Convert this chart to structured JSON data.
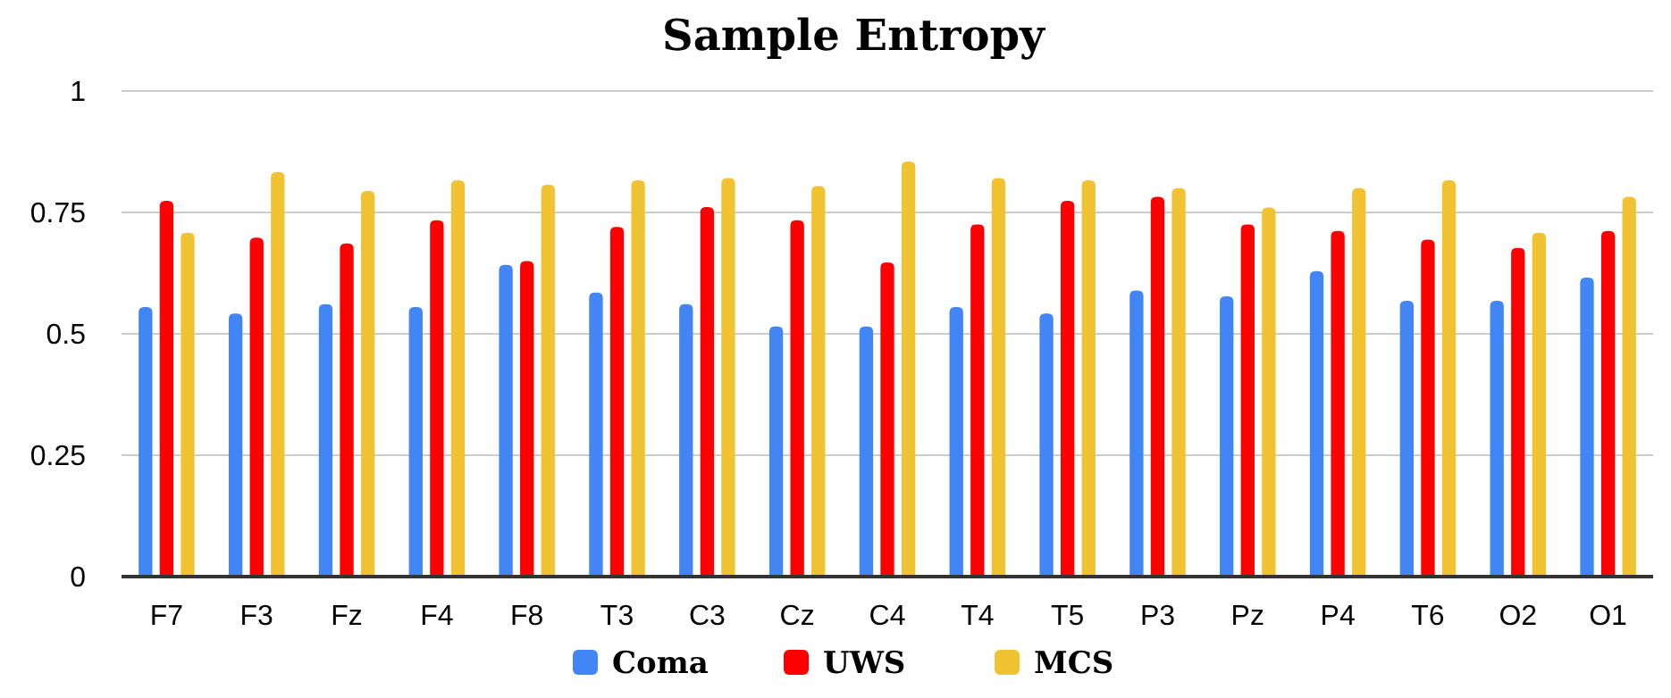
{
  "chart_data": {
    "type": "bar",
    "title": "Sample Entropy",
    "categories": [
      "F7",
      "F3",
      "Fz",
      "F4",
      "F8",
      "T3",
      "C3",
      "Cz",
      "C4",
      "T4",
      "T5",
      "P3",
      "Pz",
      "P4",
      "T6",
      "O2",
      "O1"
    ],
    "series": [
      {
        "name": "Coma",
        "color": "#4285f4",
        "values": [
          0.555,
          0.542,
          0.561,
          0.555,
          0.642,
          0.585,
          0.561,
          0.515,
          0.515,
          0.555,
          0.542,
          0.589,
          0.577,
          0.629,
          0.568,
          0.568,
          0.616
        ]
      },
      {
        "name": "UWS",
        "color": "#ff0000",
        "values": [
          0.774,
          0.698,
          0.686,
          0.734,
          0.65,
          0.72,
          0.761,
          0.734,
          0.647,
          0.725,
          0.774,
          0.782,
          0.725,
          0.712,
          0.694,
          0.677,
          0.712
        ]
      },
      {
        "name": "MCS",
        "color": "#f1c232",
        "values": [
          0.708,
          0.833,
          0.794,
          0.816,
          0.807,
          0.816,
          0.821,
          0.804,
          0.855,
          0.821,
          0.816,
          0.8,
          0.76,
          0.8,
          0.816,
          0.708,
          0.782
        ]
      }
    ],
    "ylim": [
      0,
      1
    ],
    "yticks": [
      0,
      {
        "value": 0.25,
        "label": "0.25"
      },
      {
        "value": 0.5,
        "label": "0.5"
      },
      {
        "value": 0.75,
        "label": "0.75"
      },
      1
    ],
    "grid": "y",
    "legend": "bottom"
  }
}
